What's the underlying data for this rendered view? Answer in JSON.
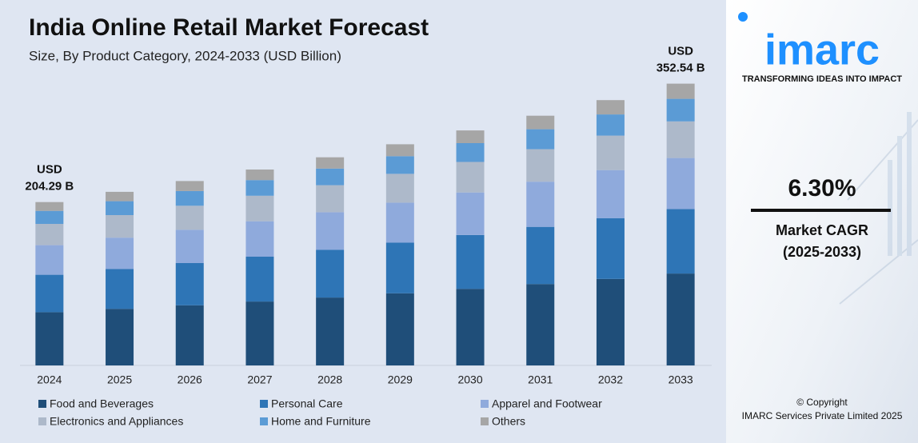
{
  "chart_data": {
    "type": "stacked-bar",
    "title": "India Online Retail Market Forecast",
    "subtitle": "Size, By Product Category, 2024-2033 (USD Billion)",
    "categories": [
      "2024",
      "2025",
      "2026",
      "2027",
      "2028",
      "2029",
      "2030",
      "2031",
      "2032",
      "2033"
    ],
    "series": [
      {
        "name": "Food and Beverages",
        "color": "#1f4e79",
        "values": [
          66.6,
          70.8,
          75.2,
          79.9,
          84.9,
          90.2,
          95.8,
          101.8,
          108.2,
          114.9
        ]
      },
      {
        "name": "Personal Care",
        "color": "#2e75b6",
        "values": [
          46.8,
          49.7,
          52.8,
          56.1,
          59.6,
          63.3,
          67.3,
          71.5,
          76.0,
          80.7
        ]
      },
      {
        "name": "Apparel and Footwear",
        "color": "#8faadc",
        "values": [
          37.0,
          39.3,
          41.7,
          44.3,
          47.1,
          50.1,
          53.2,
          56.5,
          60.1,
          63.8
        ]
      },
      {
        "name": "Electronics and Appliances",
        "color": "#adb9ca",
        "values": [
          26.6,
          28.2,
          30.0,
          31.9,
          33.8,
          36.0,
          38.2,
          40.6,
          43.1,
          45.8
        ]
      },
      {
        "name": "Home and Furniture",
        "color": "#5b9bd5",
        "values": [
          16.3,
          17.4,
          18.4,
          19.6,
          20.8,
          22.1,
          23.5,
          25.0,
          26.5,
          28.2
        ]
      },
      {
        "name": "Others",
        "color": "#a6a6a6",
        "values": [
          11.0,
          11.7,
          12.5,
          13.2,
          14.1,
          14.9,
          15.9,
          16.9,
          17.9,
          19.0
        ]
      }
    ],
    "annotations": [
      [
        "USD",
        "204.29 B"
      ],
      [
        "USD",
        "352.54 B"
      ]
    ],
    "ylim": [
      0,
      360
    ]
  },
  "sidebar": {
    "logo": "imarc",
    "tagline": "TRANSFORMING IDEAS INTO IMPACT",
    "cagr": "6.30%",
    "cagr_label": "Market CAGR",
    "cagr_period": "(2025-2033)",
    "copyright": "© Copyright",
    "company": "IMARC Services Private Limited 2025"
  }
}
